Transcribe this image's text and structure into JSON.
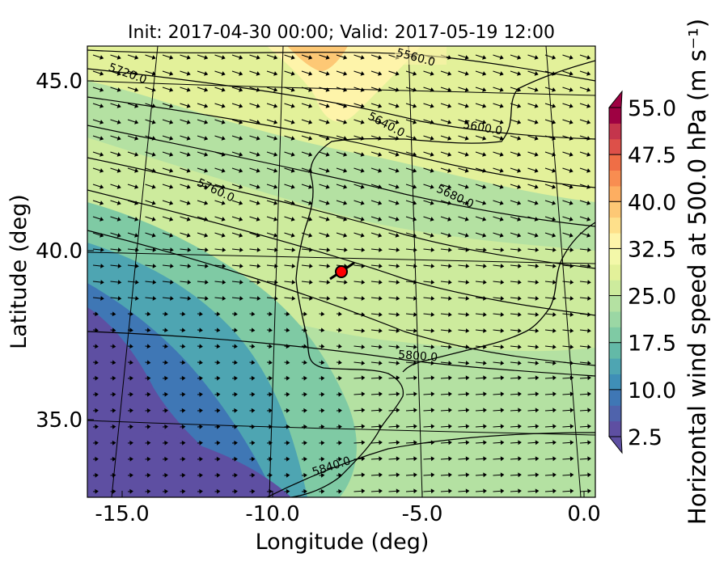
{
  "chart_data": {
    "type": "map",
    "title": "Init: 2017-04-30 00:00; Valid: 2017-05-19 12:00",
    "xlabel": "Longitude (deg)",
    "ylabel": "Latitude (deg)",
    "x_ticks": [
      "-15.0",
      "-10.0",
      "-5.0",
      "0.0"
    ],
    "y_ticks": [
      "35.0",
      "40.0",
      "45.0"
    ],
    "colorbar": {
      "label": "Horizontal wind speed at 500.0 hPa (m s⁻¹)",
      "ticks": [
        "2.5",
        "10.0",
        "17.5",
        "25.0",
        "32.5",
        "40.0",
        "47.5",
        "55.0"
      ],
      "range": [
        2.5,
        55.0
      ],
      "levels": 21,
      "colormap": "Spectral_r",
      "colors": [
        "#5e4fa2",
        "#4f63ac",
        "#3f77b5",
        "#3f8fb7",
        "#4ea5b2",
        "#63b9a7",
        "#7fcaa4",
        "#9bd7a4",
        "#b4e1a2",
        "#cdeb9d",
        "#e3f19a",
        "#f3f8a9",
        "#fef4aa",
        "#fee08b",
        "#fdc875",
        "#fdae61",
        "#f88d51",
        "#ef6e46",
        "#dd5049",
        "#c4354c",
        "#9e0142"
      ]
    },
    "contour_labels": [
      "5560.0",
      "5600.0",
      "5640.0",
      "5680.0",
      "5720.0",
      "5760.0",
      "5800.0",
      "5840.0"
    ],
    "marker": {
      "lon": -7.7,
      "lat": 39.3,
      "color": "#ff0000"
    }
  }
}
